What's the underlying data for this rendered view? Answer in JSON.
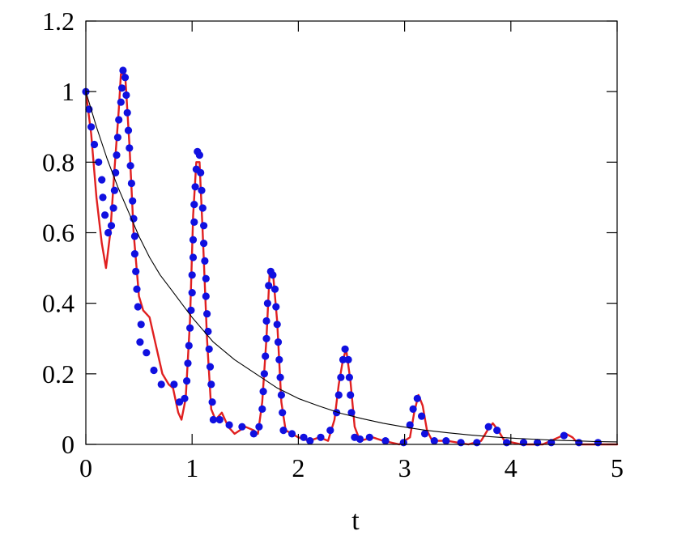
{
  "chart_data": {
    "type": "line",
    "xlabel": "t",
    "ylabel": "",
    "xlim": [
      0,
      5
    ],
    "ylim": [
      0,
      1.2
    ],
    "x_ticks": [
      0,
      1,
      2,
      3,
      4,
      5
    ],
    "x_tick_labels": [
      "0",
      "1",
      "2",
      "3",
      "4",
      "5"
    ],
    "y_ticks": [
      0,
      0.2,
      0.4,
      0.6,
      0.8,
      1.0,
      1.2
    ],
    "y_tick_labels": [
      "0",
      "0.2",
      "0.4",
      "0.6",
      "0.8",
      "1",
      "1.2"
    ],
    "grid": false,
    "series": [
      {
        "style": "line",
        "color": "#e02020",
        "points": [
          [
            0.0,
            1.0
          ],
          [
            0.05,
            0.88
          ],
          [
            0.1,
            0.7
          ],
          [
            0.15,
            0.57
          ],
          [
            0.19,
            0.5
          ],
          [
            0.23,
            0.6
          ],
          [
            0.27,
            0.78
          ],
          [
            0.31,
            0.95
          ],
          [
            0.33,
            1.05
          ],
          [
            0.37,
            1.05
          ],
          [
            0.41,
            0.85
          ],
          [
            0.45,
            0.6
          ],
          [
            0.5,
            0.42
          ],
          [
            0.54,
            0.38
          ],
          [
            0.6,
            0.36
          ],
          [
            0.66,
            0.28
          ],
          [
            0.72,
            0.2
          ],
          [
            0.78,
            0.17
          ],
          [
            0.82,
            0.16
          ],
          [
            0.87,
            0.09
          ],
          [
            0.9,
            0.07
          ],
          [
            0.94,
            0.13
          ],
          [
            0.98,
            0.35
          ],
          [
            1.01,
            0.65
          ],
          [
            1.04,
            0.8
          ],
          [
            1.07,
            0.8
          ],
          [
            1.1,
            0.6
          ],
          [
            1.14,
            0.3
          ],
          [
            1.18,
            0.1
          ],
          [
            1.22,
            0.07
          ],
          [
            1.28,
            0.09
          ],
          [
            1.34,
            0.05
          ],
          [
            1.4,
            0.03
          ],
          [
            1.5,
            0.05
          ],
          [
            1.58,
            0.04
          ],
          [
            1.62,
            0.03
          ],
          [
            1.66,
            0.12
          ],
          [
            1.7,
            0.3
          ],
          [
            1.73,
            0.49
          ],
          [
            1.76,
            0.49
          ],
          [
            1.8,
            0.35
          ],
          [
            1.84,
            0.12
          ],
          [
            1.88,
            0.04
          ],
          [
            1.94,
            0.03
          ],
          [
            2.0,
            0.02
          ],
          [
            2.1,
            0.01
          ],
          [
            2.2,
            0.02
          ],
          [
            2.28,
            0.01
          ],
          [
            2.34,
            0.07
          ],
          [
            2.38,
            0.17
          ],
          [
            2.42,
            0.24
          ],
          [
            2.45,
            0.27
          ],
          [
            2.49,
            0.18
          ],
          [
            2.53,
            0.05
          ],
          [
            2.58,
            0.01
          ],
          [
            2.7,
            0.02
          ],
          [
            2.8,
            0.01
          ],
          [
            2.95,
            0.0
          ],
          [
            3.05,
            0.02
          ],
          [
            3.09,
            0.09
          ],
          [
            3.13,
            0.14
          ],
          [
            3.17,
            0.11
          ],
          [
            3.21,
            0.04
          ],
          [
            3.26,
            0.01
          ],
          [
            3.4,
            0.01
          ],
          [
            3.6,
            0.0
          ],
          [
            3.72,
            0.01
          ],
          [
            3.78,
            0.04
          ],
          [
            3.83,
            0.06
          ],
          [
            3.88,
            0.04
          ],
          [
            3.94,
            0.01
          ],
          [
            4.1,
            0.0
          ],
          [
            4.3,
            0.0
          ],
          [
            4.45,
            0.02
          ],
          [
            4.52,
            0.03
          ],
          [
            4.58,
            0.02
          ],
          [
            4.64,
            0.0
          ],
          [
            4.8,
            0.0
          ],
          [
            5.0,
            0.0
          ]
        ]
      },
      {
        "style": "dots",
        "color": "#1010e0",
        "points": [
          [
            0.0,
            1.0
          ],
          [
            0.03,
            0.95
          ],
          [
            0.05,
            0.9
          ],
          [
            0.08,
            0.85
          ],
          [
            0.12,
            0.8
          ],
          [
            0.15,
            0.75
          ],
          [
            0.16,
            0.7
          ],
          [
            0.18,
            0.65
          ],
          [
            0.21,
            0.6
          ],
          [
            0.24,
            0.62
          ],
          [
            0.26,
            0.67
          ],
          [
            0.27,
            0.72
          ],
          [
            0.28,
            0.77
          ],
          [
            0.29,
            0.82
          ],
          [
            0.3,
            0.87
          ],
          [
            0.31,
            0.92
          ],
          [
            0.33,
            0.97
          ],
          [
            0.34,
            1.01
          ],
          [
            0.35,
            1.06
          ],
          [
            0.37,
            1.04
          ],
          [
            0.38,
            0.99
          ],
          [
            0.39,
            0.94
          ],
          [
            0.4,
            0.89
          ],
          [
            0.41,
            0.84
          ],
          [
            0.42,
            0.79
          ],
          [
            0.43,
            0.74
          ],
          [
            0.44,
            0.69
          ],
          [
            0.45,
            0.64
          ],
          [
            0.46,
            0.59
          ],
          [
            0.46,
            0.54
          ],
          [
            0.47,
            0.49
          ],
          [
            0.48,
            0.44
          ],
          [
            0.49,
            0.39
          ],
          [
            0.52,
            0.34
          ],
          [
            0.51,
            0.29
          ],
          [
            0.57,
            0.26
          ],
          [
            0.64,
            0.21
          ],
          [
            0.71,
            0.17
          ],
          [
            0.83,
            0.17
          ],
          [
            0.88,
            0.12
          ],
          [
            0.93,
            0.13
          ],
          [
            0.95,
            0.18
          ],
          [
            0.96,
            0.23
          ],
          [
            0.97,
            0.28
          ],
          [
            0.98,
            0.33
          ],
          [
            0.99,
            0.38
          ],
          [
            1.0,
            0.43
          ],
          [
            1.0,
            0.48
          ],
          [
            1.01,
            0.53
          ],
          [
            1.01,
            0.58
          ],
          [
            1.02,
            0.63
          ],
          [
            1.02,
            0.68
          ],
          [
            1.03,
            0.73
          ],
          [
            1.04,
            0.78
          ],
          [
            1.05,
            0.83
          ],
          [
            1.07,
            0.82
          ],
          [
            1.08,
            0.77
          ],
          [
            1.09,
            0.72
          ],
          [
            1.1,
            0.67
          ],
          [
            1.11,
            0.62
          ],
          [
            1.11,
            0.57
          ],
          [
            1.12,
            0.52
          ],
          [
            1.13,
            0.47
          ],
          [
            1.13,
            0.42
          ],
          [
            1.14,
            0.37
          ],
          [
            1.15,
            0.32
          ],
          [
            1.16,
            0.27
          ],
          [
            1.17,
            0.22
          ],
          [
            1.18,
            0.17
          ],
          [
            1.19,
            0.12
          ],
          [
            1.2,
            0.07
          ],
          [
            1.26,
            0.07
          ],
          [
            1.35,
            0.055
          ],
          [
            1.47,
            0.05
          ],
          [
            1.58,
            0.03
          ],
          [
            1.63,
            0.05
          ],
          [
            1.66,
            0.1
          ],
          [
            1.67,
            0.15
          ],
          [
            1.68,
            0.2
          ],
          [
            1.69,
            0.25
          ],
          [
            1.7,
            0.3
          ],
          [
            1.7,
            0.35
          ],
          [
            1.71,
            0.4
          ],
          [
            1.72,
            0.45
          ],
          [
            1.74,
            0.49
          ],
          [
            1.76,
            0.48
          ],
          [
            1.78,
            0.44
          ],
          [
            1.79,
            0.39
          ],
          [
            1.8,
            0.34
          ],
          [
            1.81,
            0.29
          ],
          [
            1.82,
            0.24
          ],
          [
            1.83,
            0.19
          ],
          [
            1.84,
            0.14
          ],
          [
            1.85,
            0.09
          ],
          [
            1.86,
            0.04
          ],
          [
            1.94,
            0.03
          ],
          [
            2.05,
            0.02
          ],
          [
            2.11,
            0.01
          ],
          [
            2.21,
            0.02
          ],
          [
            2.3,
            0.04
          ],
          [
            2.36,
            0.09
          ],
          [
            2.38,
            0.14
          ],
          [
            2.4,
            0.19
          ],
          [
            2.42,
            0.24
          ],
          [
            2.44,
            0.27
          ],
          [
            2.47,
            0.24
          ],
          [
            2.48,
            0.19
          ],
          [
            2.49,
            0.14
          ],
          [
            2.5,
            0.09
          ],
          [
            2.53,
            0.02
          ],
          [
            2.58,
            0.015
          ],
          [
            2.67,
            0.02
          ],
          [
            2.82,
            0.01
          ],
          [
            2.99,
            0.005
          ],
          [
            3.05,
            0.055
          ],
          [
            3.08,
            0.1
          ],
          [
            3.12,
            0.13
          ],
          [
            3.16,
            0.08
          ],
          [
            3.19,
            0.03
          ],
          [
            3.28,
            0.01
          ],
          [
            3.39,
            0.01
          ],
          [
            3.53,
            0.005
          ],
          [
            3.68,
            0.005
          ],
          [
            3.79,
            0.05
          ],
          [
            3.87,
            0.04
          ],
          [
            3.96,
            0.005
          ],
          [
            4.12,
            0.005
          ],
          [
            4.25,
            0.005
          ],
          [
            4.38,
            0.005
          ],
          [
            4.5,
            0.025
          ],
          [
            4.64,
            0.005
          ],
          [
            4.82,
            0.005
          ]
        ]
      },
      {
        "style": "thin-line",
        "color": "#000000",
        "points": [
          [
            0.0,
            1.0
          ],
          [
            0.1,
            0.9
          ],
          [
            0.2,
            0.81
          ],
          [
            0.3,
            0.73
          ],
          [
            0.4,
            0.66
          ],
          [
            0.5,
            0.59
          ],
          [
            0.6,
            0.53
          ],
          [
            0.7,
            0.48
          ],
          [
            0.8,
            0.44
          ],
          [
            0.9,
            0.4
          ],
          [
            1.0,
            0.36
          ],
          [
            1.2,
            0.29
          ],
          [
            1.4,
            0.24
          ],
          [
            1.6,
            0.2
          ],
          [
            1.8,
            0.16
          ],
          [
            2.0,
            0.13
          ],
          [
            2.2,
            0.108
          ],
          [
            2.4,
            0.088
          ],
          [
            2.6,
            0.073
          ],
          [
            2.8,
            0.06
          ],
          [
            3.0,
            0.049
          ],
          [
            3.2,
            0.04
          ],
          [
            3.4,
            0.033
          ],
          [
            3.6,
            0.027
          ],
          [
            3.8,
            0.022
          ],
          [
            4.0,
            0.018
          ],
          [
            4.2,
            0.015
          ],
          [
            4.4,
            0.012
          ],
          [
            4.6,
            0.01
          ],
          [
            4.8,
            0.008
          ],
          [
            5.0,
            0.007
          ]
        ]
      }
    ]
  }
}
